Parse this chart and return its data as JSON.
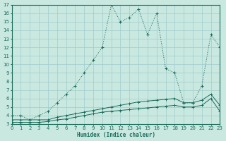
{
  "xlabel": "Humidex (Indice chaleur)",
  "xlim": [
    0,
    23
  ],
  "ylim": [
    3,
    17
  ],
  "xticks": [
    0,
    1,
    2,
    3,
    4,
    5,
    6,
    7,
    8,
    9,
    10,
    11,
    12,
    13,
    14,
    15,
    16,
    17,
    18,
    19,
    20,
    21,
    22,
    23
  ],
  "yticks": [
    3,
    4,
    5,
    6,
    7,
    8,
    9,
    10,
    11,
    12,
    13,
    14,
    15,
    16,
    17
  ],
  "bg_color": "#c8e8e0",
  "grid_color": "#a0cccc",
  "line_color": "#1a6b5a",
  "series_main": {
    "x": [
      0,
      1,
      2,
      3,
      4,
      5,
      6,
      7,
      8,
      9,
      10,
      11,
      12,
      13,
      14,
      15,
      16,
      17,
      18,
      19,
      20,
      21,
      22,
      23
    ],
    "y": [
      4,
      4,
      3.5,
      4,
      4.5,
      5.5,
      6.5,
      7.5,
      9,
      10.5,
      12,
      17,
      15,
      15.5,
      16.5,
      13.5,
      16,
      9.5,
      9,
      5.5,
      5.5,
      7.5,
      13.5,
      12
    ]
  },
  "series_line1": {
    "x": [
      0,
      1,
      2,
      3,
      4,
      5,
      6,
      7,
      8,
      9,
      10,
      11,
      12,
      13,
      14,
      15,
      16,
      17,
      18,
      19,
      20,
      21,
      22,
      23
    ],
    "y": [
      3.5,
      3.5,
      3.5,
      3.5,
      3.5,
      3.8,
      4.0,
      4.2,
      4.4,
      4.6,
      4.8,
      5.0,
      5.2,
      5.4,
      5.6,
      5.7,
      5.8,
      5.9,
      6.0,
      5.5,
      5.5,
      5.8,
      6.5,
      5.2
    ]
  },
  "series_line2": {
    "x": [
      0,
      1,
      2,
      3,
      4,
      5,
      6,
      7,
      8,
      9,
      10,
      11,
      12,
      13,
      14,
      15,
      16,
      17,
      18,
      19,
      20,
      21,
      22,
      23
    ],
    "y": [
      3.2,
      3.2,
      3.2,
      3.2,
      3.3,
      3.5,
      3.6,
      3.8,
      4.0,
      4.2,
      4.4,
      4.5,
      4.6,
      4.7,
      4.8,
      4.9,
      5.0,
      5.1,
      5.2,
      5.0,
      5.0,
      5.2,
      6.0,
      4.5
    ]
  }
}
